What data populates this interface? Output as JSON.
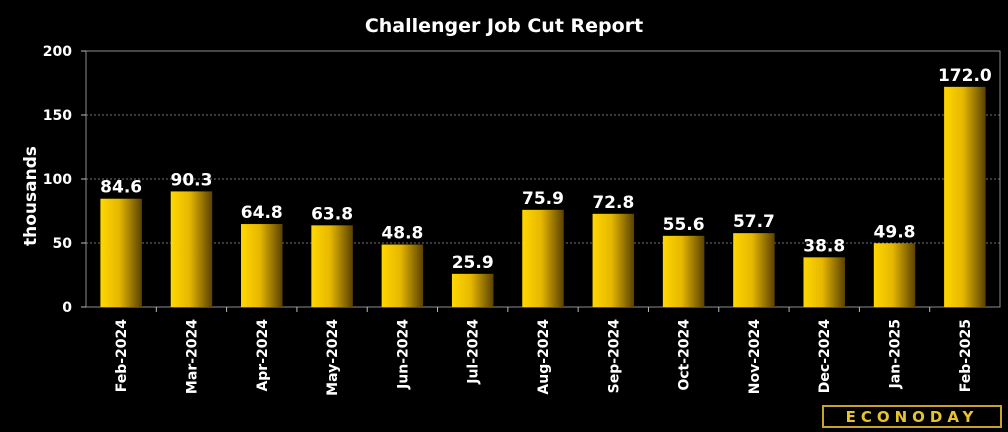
{
  "chart_data": {
    "type": "bar",
    "title": "Challenger Job Cut Report",
    "ylabel": "thousands",
    "xlabel": "",
    "categories": [
      "Feb-2024",
      "Mar-2024",
      "Apr-2024",
      "May-2024",
      "Jun-2024",
      "Jul-2024",
      "Aug-2024",
      "Sep-2024",
      "Oct-2024",
      "Nov-2024",
      "Dec-2024",
      "Jan-2025",
      "Feb-2025"
    ],
    "values": [
      84.6,
      90.3,
      64.8,
      63.8,
      48.8,
      25.9,
      75.9,
      72.8,
      55.6,
      57.7,
      38.8,
      49.8,
      172.0
    ],
    "value_labels": [
      "84.6",
      "90.3",
      "64.8",
      "63.8",
      "48.8",
      "25.9",
      "75.9",
      "72.8",
      "55.6",
      "57.7",
      "38.8",
      "49.8",
      "172.0"
    ],
    "ylim": [
      0,
      200
    ],
    "yticks": [
      0,
      50,
      100,
      150,
      200
    ],
    "ytick_labels": [
      "0",
      "50",
      "100",
      "150",
      "200"
    ],
    "grid": true,
    "bar_color": "#e8c300",
    "background": "#000000"
  },
  "brand": {
    "name": "ECONODAY"
  }
}
